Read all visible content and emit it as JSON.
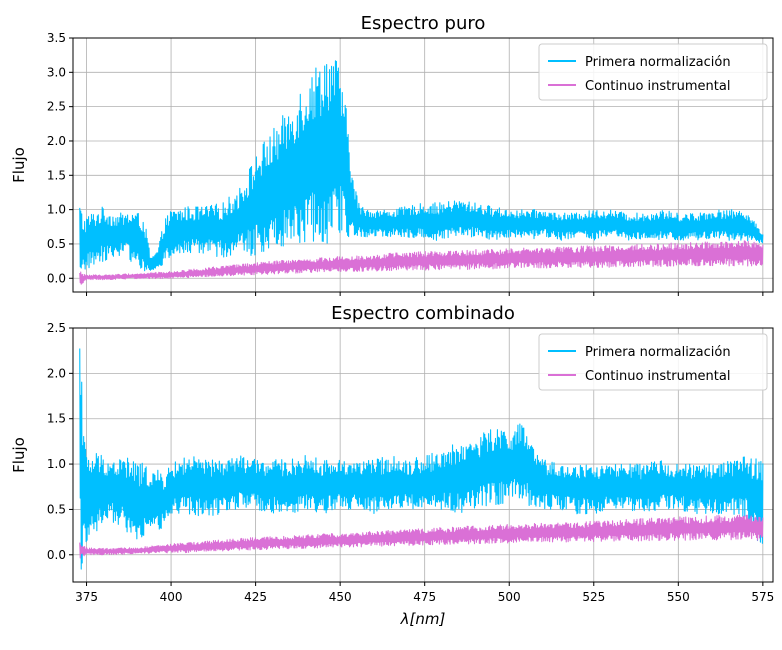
{
  "chart_data": [
    {
      "type": "line",
      "title": "Espectro puro",
      "ylabel": "Flujo",
      "xlabel": "",
      "xlim": [
        371,
        578
      ],
      "ylim": [
        -0.2,
        3.5
      ],
      "xticks": [
        375,
        400,
        425,
        450,
        475,
        500,
        525,
        550,
        575
      ],
      "xtick_labels_visible": false,
      "yticks": [
        0.0,
        0.5,
        1.0,
        1.5,
        2.0,
        2.5,
        3.0,
        3.5
      ],
      "ytick_labels": [
        "0.0",
        "0.5",
        "1.0",
        "1.5",
        "2.0",
        "2.5",
        "3.0",
        "3.5"
      ],
      "grid": true,
      "legend_position": "top-right",
      "series": [
        {
          "name": "Primera normalización",
          "color": "#00bfff",
          "x": [
            373,
            374,
            376,
            378,
            380,
            383,
            386,
            389,
            392,
            394,
            396,
            398,
            400,
            405,
            410,
            415,
            420,
            423,
            426,
            429,
            432,
            435,
            438,
            441,
            444,
            446,
            448,
            450,
            452,
            454,
            456,
            460,
            465,
            470,
            475,
            480,
            485,
            490,
            495,
            500,
            505,
            510,
            515,
            520,
            525,
            530,
            535,
            540,
            545,
            550,
            555,
            560,
            565,
            570,
            575
          ],
          "upper": [
            1.15,
            0.9,
            0.95,
            1.0,
            1.05,
            0.95,
            0.95,
            1.0,
            0.9,
            0.3,
            0.4,
            0.85,
            1.0,
            1.05,
            1.05,
            1.1,
            1.3,
            1.6,
            1.9,
            2.1,
            2.3,
            2.5,
            2.8,
            3.0,
            3.2,
            3.35,
            3.3,
            3.1,
            2.4,
            1.4,
            1.05,
            1.0,
            1.0,
            1.05,
            1.1,
            1.1,
            1.15,
            1.1,
            1.05,
            1.0,
            1.0,
            1.0,
            0.95,
            0.95,
            1.0,
            1.0,
            0.95,
            0.95,
            1.0,
            0.95,
            0.95,
            1.0,
            1.0,
            1.0,
            0.65
          ],
          "lower": [
            -0.2,
            0.05,
            0.15,
            0.2,
            0.25,
            0.3,
            0.35,
            0.2,
            0.1,
            0.05,
            0.15,
            0.2,
            0.3,
            0.35,
            0.35,
            0.3,
            0.35,
            0.3,
            0.35,
            0.4,
            0.45,
            0.5,
            0.45,
            0.5,
            0.55,
            0.5,
            0.6,
            0.6,
            0.55,
            0.55,
            0.6,
            0.6,
            0.6,
            0.6,
            0.55,
            0.55,
            0.6,
            0.6,
            0.55,
            0.6,
            0.55,
            0.6,
            0.55,
            0.6,
            0.55,
            0.6,
            0.55,
            0.55,
            0.55,
            0.55,
            0.55,
            0.55,
            0.55,
            0.55,
            0.5
          ]
        },
        {
          "name": "Continuo instrumental",
          "color": "#da70d6",
          "x": [
            373,
            375,
            380,
            390,
            400,
            410,
            420,
            430,
            440,
            450,
            460,
            470,
            480,
            490,
            500,
            510,
            520,
            530,
            540,
            550,
            560,
            570,
            575
          ],
          "upper": [
            0.1,
            0.05,
            0.05,
            0.07,
            0.1,
            0.15,
            0.2,
            0.25,
            0.28,
            0.32,
            0.35,
            0.38,
            0.4,
            0.42,
            0.43,
            0.45,
            0.47,
            0.48,
            0.5,
            0.52,
            0.53,
            0.55,
            0.5
          ],
          "lower": [
            -0.15,
            -0.02,
            -0.02,
            -0.01,
            0.0,
            0.02,
            0.04,
            0.06,
            0.08,
            0.1,
            0.1,
            0.12,
            0.12,
            0.13,
            0.14,
            0.15,
            0.15,
            0.16,
            0.17,
            0.17,
            0.18,
            0.18,
            0.15
          ]
        }
      ]
    },
    {
      "type": "line",
      "title": "Espectro combinado",
      "ylabel": "Flujo",
      "xlabel": "λ[nm]",
      "xlim": [
        371,
        578
      ],
      "ylim": [
        -0.3,
        2.5
      ],
      "xticks": [
        375,
        400,
        425,
        450,
        475,
        500,
        525,
        550,
        575
      ],
      "xtick_labels": [
        "375",
        "400",
        "425",
        "450",
        "475",
        "500",
        "525",
        "550",
        "575"
      ],
      "yticks": [
        0.0,
        0.5,
        1.0,
        1.5,
        2.0,
        2.5
      ],
      "ytick_labels": [
        "0.0",
        "0.5",
        "1.0",
        "1.5",
        "2.0",
        "2.5"
      ],
      "grid": true,
      "legend_position": "top-right",
      "series": [
        {
          "name": "Primera normalización",
          "color": "#00bfff",
          "x": [
            373,
            373.5,
            374,
            375,
            376,
            378,
            380,
            383,
            386,
            389,
            392,
            395,
            398,
            400,
            405,
            410,
            415,
            420,
            425,
            430,
            435,
            440,
            445,
            450,
            455,
            460,
            465,
            470,
            475,
            480,
            485,
            490,
            495,
            500,
            503,
            505,
            507,
            510,
            515,
            520,
            525,
            530,
            535,
            540,
            545,
            550,
            555,
            560,
            565,
            570,
            575
          ],
          "upper": [
            2.5,
            2.5,
            1.6,
            1.1,
            1.1,
            1.15,
            1.1,
            1.05,
            1.1,
            1.05,
            1.0,
            0.95,
            0.9,
            1.0,
            1.1,
            1.05,
            1.05,
            1.1,
            1.05,
            1.05,
            1.05,
            1.1,
            1.05,
            1.05,
            1.05,
            1.05,
            1.1,
            1.05,
            1.1,
            1.15,
            1.25,
            1.3,
            1.4,
            1.4,
            1.45,
            1.4,
            1.2,
            1.05,
            1.0,
            1.0,
            1.0,
            1.0,
            1.0,
            1.0,
            1.05,
            1.0,
            1.0,
            1.0,
            1.05,
            1.1,
            1.1
          ],
          "lower": [
            -0.3,
            -0.2,
            -0.25,
            0.1,
            0.25,
            0.2,
            0.4,
            0.35,
            0.3,
            0.1,
            0.2,
            0.25,
            0.3,
            0.45,
            0.45,
            0.4,
            0.45,
            0.5,
            0.5,
            0.45,
            0.45,
            0.5,
            0.45,
            0.5,
            0.5,
            0.45,
            0.5,
            0.5,
            0.45,
            0.5,
            0.45,
            0.5,
            0.55,
            0.55,
            0.6,
            0.55,
            0.5,
            0.5,
            0.5,
            0.45,
            0.45,
            0.5,
            0.5,
            0.45,
            0.5,
            0.5,
            0.45,
            0.45,
            0.45,
            0.4,
            -0.05
          ]
        },
        {
          "name": "Continuo instrumental",
          "color": "#da70d6",
          "x": [
            373,
            375,
            380,
            390,
            400,
            410,
            420,
            430,
            440,
            450,
            460,
            470,
            480,
            490,
            500,
            510,
            520,
            530,
            540,
            550,
            560,
            570,
            575
          ],
          "upper": [
            0.15,
            0.08,
            0.07,
            0.08,
            0.12,
            0.15,
            0.18,
            0.2,
            0.22,
            0.24,
            0.26,
            0.28,
            0.3,
            0.32,
            0.34,
            0.35,
            0.36,
            0.38,
            0.4,
            0.42,
            0.43,
            0.45,
            0.42
          ],
          "lower": [
            -0.05,
            0.0,
            0.0,
            0.01,
            0.02,
            0.03,
            0.05,
            0.06,
            0.07,
            0.08,
            0.09,
            0.1,
            0.11,
            0.12,
            0.13,
            0.14,
            0.14,
            0.15,
            0.15,
            0.16,
            0.16,
            0.17,
            0.15
          ]
        }
      ]
    }
  ]
}
